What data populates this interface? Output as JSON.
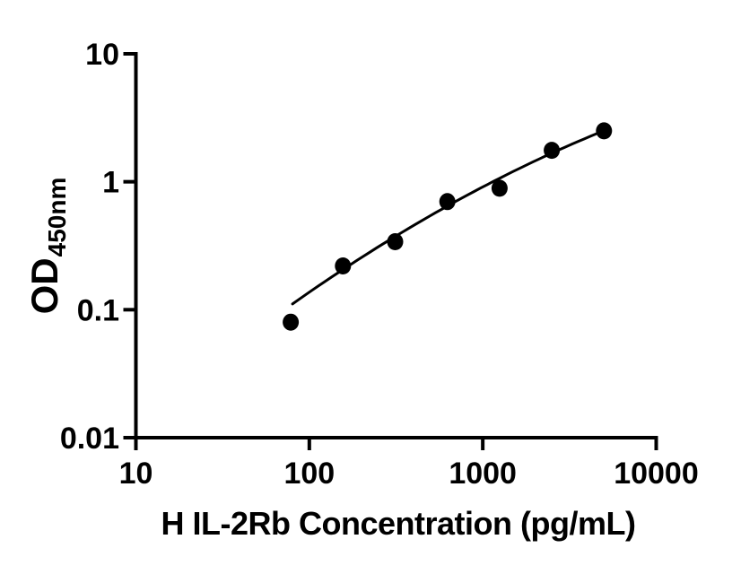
{
  "figure": {
    "background_color": "#ffffff",
    "ink_color": "#000000"
  },
  "chart_data": {
    "type": "scatter",
    "title": "",
    "xlabel": "H IL-2Rb Concentration (pg/mL)",
    "ylabel": {
      "main": "OD",
      "sub": "450nm"
    },
    "x_scale": "log",
    "y_scale": "log",
    "xlim": [
      10,
      10000
    ],
    "ylim": [
      0.01,
      10
    ],
    "grid": false,
    "legend": false,
    "x_ticks": [
      {
        "value": 10,
        "label": "10"
      },
      {
        "value": 100,
        "label": "100"
      },
      {
        "value": 1000,
        "label": "1000"
      },
      {
        "value": 10000,
        "label": "10000"
      }
    ],
    "y_ticks": [
      {
        "value": 10,
        "label": "10"
      },
      {
        "value": 1,
        "label": "1"
      },
      {
        "value": 0.1,
        "label": "0.1"
      },
      {
        "value": 0.01,
        "label": "0.01"
      }
    ],
    "series": [
      {
        "marker": "filled-circle",
        "color": "#000000",
        "points": [
          {
            "x": 78.125,
            "y": 0.08
          },
          {
            "x": 156.25,
            "y": 0.22
          },
          {
            "x": 312.5,
            "y": 0.34
          },
          {
            "x": 625,
            "y": 0.7
          },
          {
            "x": 1250,
            "y": 0.89
          },
          {
            "x": 2500,
            "y": 1.76
          },
          {
            "x": 5000,
            "y": 2.5
          }
        ]
      }
    ],
    "fit_curve": {
      "model": "log10(OD) = a + b*log10(C) + c*log10(C)^2",
      "a": -3.189,
      "b": 1.39,
      "c": -0.1135,
      "x_start": 80,
      "x_end": 5000,
      "color": "#000000"
    }
  }
}
